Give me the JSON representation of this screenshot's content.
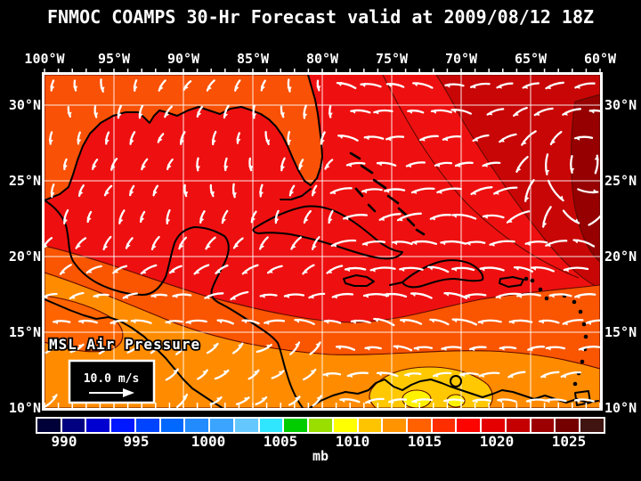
{
  "header": {
    "title": "FNMOC COAMPS 30-Hr Forecast valid at 2009/08/12 18Z"
  },
  "map": {
    "overlay_label": "MSL Air Pressure",
    "wind_legend": {
      "speed_label": "10.0 m/s"
    },
    "grid": {
      "lon_labels": [
        "100°W",
        "95°W",
        "90°W",
        "85°W",
        "80°W",
        "75°W",
        "70°W",
        "65°W",
        "60°W"
      ],
      "lat_labels_left": [
        "30°N",
        "25°N",
        "20°N",
        "15°N",
        "10°N"
      ],
      "lat_labels_right": [
        "30°N",
        "25°N",
        "20°N",
        "15°N",
        "10°N"
      ]
    },
    "field_colors": {
      "red": "#ee1010",
      "coastal_band_orange_red": "#f95106",
      "south_orange_red": "#fa5500",
      "orange": "#ff8c00",
      "deep_orange": "#ff6400",
      "gold": "#ffc800",
      "yellow": "#fff200",
      "dark_red": "#c80606",
      "darker_red": "#960000",
      "contour_line": "#5e0a00",
      "coastline": "#000000",
      "grid_line": "#ffffff",
      "wind_vector": "#ffffff"
    }
  },
  "colorbar": {
    "unit_label": "mb",
    "tick_labels": [
      "990",
      "995",
      "1000",
      "1005",
      "1010",
      "1015",
      "1020",
      "1025"
    ],
    "segment_colors": [
      "#000038",
      "#000080",
      "#0000d0",
      "#0018ff",
      "#0044ff",
      "#0068ff",
      "#228cff",
      "#3aa4ff",
      "#64c8ff",
      "#30e6ff",
      "#00cc00",
      "#9ade00",
      "#ffff00",
      "#ffc400",
      "#ff9400",
      "#ff6000",
      "#ff2e00",
      "#fc0400",
      "#e40000",
      "#c40000",
      "#9c0000",
      "#740000",
      "#401410"
    ]
  }
}
